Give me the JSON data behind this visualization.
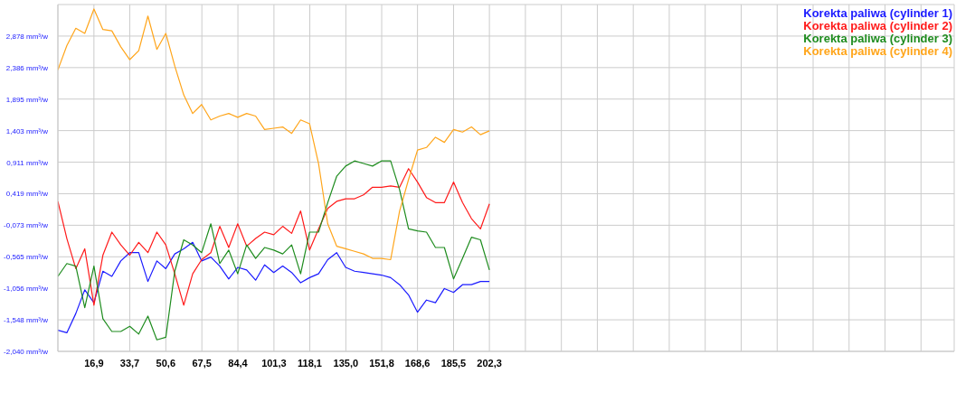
{
  "chart_data": {
    "type": "line",
    "x": [
      0,
      4.2,
      8.4,
      12.6,
      16.9,
      21.1,
      25.3,
      29.5,
      33.7,
      37.9,
      42.2,
      46.4,
      50.6,
      54.8,
      59.0,
      63.2,
      67.4,
      71.7,
      75.9,
      80.1,
      84.3,
      88.5,
      92.7,
      96.9,
      101.2,
      105.4,
      109.6,
      113.8,
      118.0,
      122.2,
      126.5,
      130.7,
      134.9,
      139.1,
      143.3,
      147.5,
      151.7,
      156.0,
      160.2,
      164.4,
      168.6,
      172.8,
      177.0,
      181.2,
      185.5,
      189.7,
      193.9,
      198.1,
      202.3
    ],
    "series": [
      {
        "name": "Korekta paliwa (cylinder 1)",
        "color": "#1a1aff",
        "values": [
          -1.71,
          -1.75,
          -1.45,
          -1.08,
          -1.28,
          -0.79,
          -0.87,
          -0.63,
          -0.5,
          -0.5,
          -0.95,
          -0.63,
          -0.75,
          -0.52,
          -0.44,
          -0.34,
          -0.63,
          -0.57,
          -0.71,
          -0.91,
          -0.73,
          -0.77,
          -0.93,
          -0.69,
          -0.81,
          -0.71,
          -0.81,
          -0.97,
          -0.89,
          -0.83,
          -0.61,
          -0.5,
          -0.73,
          -0.79,
          -0.81,
          -0.83,
          -0.85,
          -0.89,
          -1.0,
          -1.16,
          -1.43,
          -1.24,
          -1.28,
          -1.06,
          -1.12,
          -1.0,
          -1.0,
          -0.95,
          -0.95
        ]
      },
      {
        "name": "Korekta paliwa (cylinder 2)",
        "color": "#ff1a1a",
        "values": [
          0.3,
          -0.28,
          -0.75,
          -0.44,
          -1.32,
          -0.54,
          -0.18,
          -0.38,
          -0.54,
          -0.34,
          -0.5,
          -0.18,
          -0.38,
          -0.83,
          -1.32,
          -0.83,
          -0.61,
          -0.5,
          -0.09,
          -0.42,
          -0.05,
          -0.4,
          -0.28,
          -0.18,
          -0.22,
          -0.09,
          -0.2,
          0.15,
          -0.46,
          -0.13,
          0.19,
          0.3,
          0.34,
          0.34,
          0.4,
          0.52,
          0.52,
          0.54,
          0.52,
          0.81,
          0.6,
          0.36,
          0.28,
          0.28,
          0.6,
          0.28,
          0.03,
          -0.13,
          0.26
        ]
      },
      {
        "name": "Korekta paliwa (cylinder 3)",
        "color": "#1e8c1e",
        "values": [
          -0.87,
          -0.67,
          -0.71,
          -1.36,
          -0.71,
          -1.53,
          -1.73,
          -1.73,
          -1.65,
          -1.77,
          -1.49,
          -1.86,
          -1.82,
          -0.79,
          -0.3,
          -0.38,
          -0.5,
          -0.05,
          -0.67,
          -0.46,
          -0.83,
          -0.38,
          -0.59,
          -0.42,
          -0.46,
          -0.52,
          -0.38,
          -0.83,
          -0.18,
          -0.18,
          0.28,
          0.69,
          0.85,
          0.93,
          0.89,
          0.85,
          0.93,
          0.93,
          0.48,
          -0.13,
          -0.16,
          -0.18,
          -0.42,
          -0.42,
          -0.91,
          -0.59,
          -0.26,
          -0.3,
          -0.77
        ]
      },
      {
        "name": "Korekta paliwa (cylinder 4)",
        "color": "#ffa51a",
        "values": [
          2.35,
          2.73,
          3.0,
          2.92,
          3.3,
          2.98,
          2.96,
          2.71,
          2.51,
          2.65,
          3.19,
          2.67,
          2.92,
          2.41,
          1.96,
          1.67,
          1.81,
          1.57,
          1.63,
          1.67,
          1.61,
          1.67,
          1.63,
          1.42,
          1.44,
          1.46,
          1.36,
          1.57,
          1.51,
          0.89,
          -0.05,
          -0.4,
          -0.44,
          -0.48,
          -0.52,
          -0.59,
          -0.59,
          -0.61,
          0.15,
          0.64,
          1.1,
          1.14,
          1.3,
          1.22,
          1.42,
          1.38,
          1.46,
          1.34,
          1.4
        ]
      }
    ],
    "xlim": [
      0,
      420.2
    ],
    "xticks": [
      {
        "value": 16.9,
        "label": "16,9"
      },
      {
        "value": 33.7,
        "label": "33,7"
      },
      {
        "value": 50.6,
        "label": "50,6"
      },
      {
        "value": 67.5,
        "label": "67,5"
      },
      {
        "value": 84.4,
        "label": "84,4"
      },
      {
        "value": 101.3,
        "label": "101,3"
      },
      {
        "value": 118.1,
        "label": "118,1"
      },
      {
        "value": 135.0,
        "label": "135,0"
      },
      {
        "value": 151.8,
        "label": "151,8"
      },
      {
        "value": 168.6,
        "label": "168,6"
      },
      {
        "value": 185.5,
        "label": "185,5"
      },
      {
        "value": 202.3,
        "label": "202,3"
      },
      {
        "value": 219.18,
        "label": null
      },
      {
        "value": 236.04,
        "label": null
      },
      {
        "value": 252.9,
        "label": null
      },
      {
        "value": 269.76,
        "label": null
      },
      {
        "value": 286.62,
        "label": null
      },
      {
        "value": 303.48,
        "label": null
      },
      {
        "value": 320.34,
        "label": null
      },
      {
        "value": 337.2,
        "label": null
      },
      {
        "value": 354.06,
        "label": null
      },
      {
        "value": 370.92,
        "label": null
      },
      {
        "value": 387.78,
        "label": null
      },
      {
        "value": 404.64,
        "label": null
      }
    ],
    "ylim": [
      -2.04,
      3.37
    ],
    "yticks": [
      {
        "value": -2.04,
        "label": "-2,040 mm³/w"
      },
      {
        "value": -1.548,
        "label": "-1,548 mm³/w"
      },
      {
        "value": -1.056,
        "label": "-1,056 mm³/w"
      },
      {
        "value": -0.565,
        "label": "-0,565 mm³/w"
      },
      {
        "value": -0.073,
        "label": "-0,073 mm³/w"
      },
      {
        "value": 0.419,
        "label": "0,419 mm³/w"
      },
      {
        "value": 0.911,
        "label": "0,911 mm³/w"
      },
      {
        "value": 1.403,
        "label": "1,403 mm³/w"
      },
      {
        "value": 1.895,
        "label": "1,895 mm³/w"
      },
      {
        "value": 2.386,
        "label": "2,386 mm³/w"
      },
      {
        "value": 2.878,
        "label": "2,878 mm³/w"
      },
      {
        "value": 3.37,
        "label": null
      }
    ],
    "grid": true,
    "legend": "top right",
    "marker": "none",
    "line_style": "solid"
  }
}
